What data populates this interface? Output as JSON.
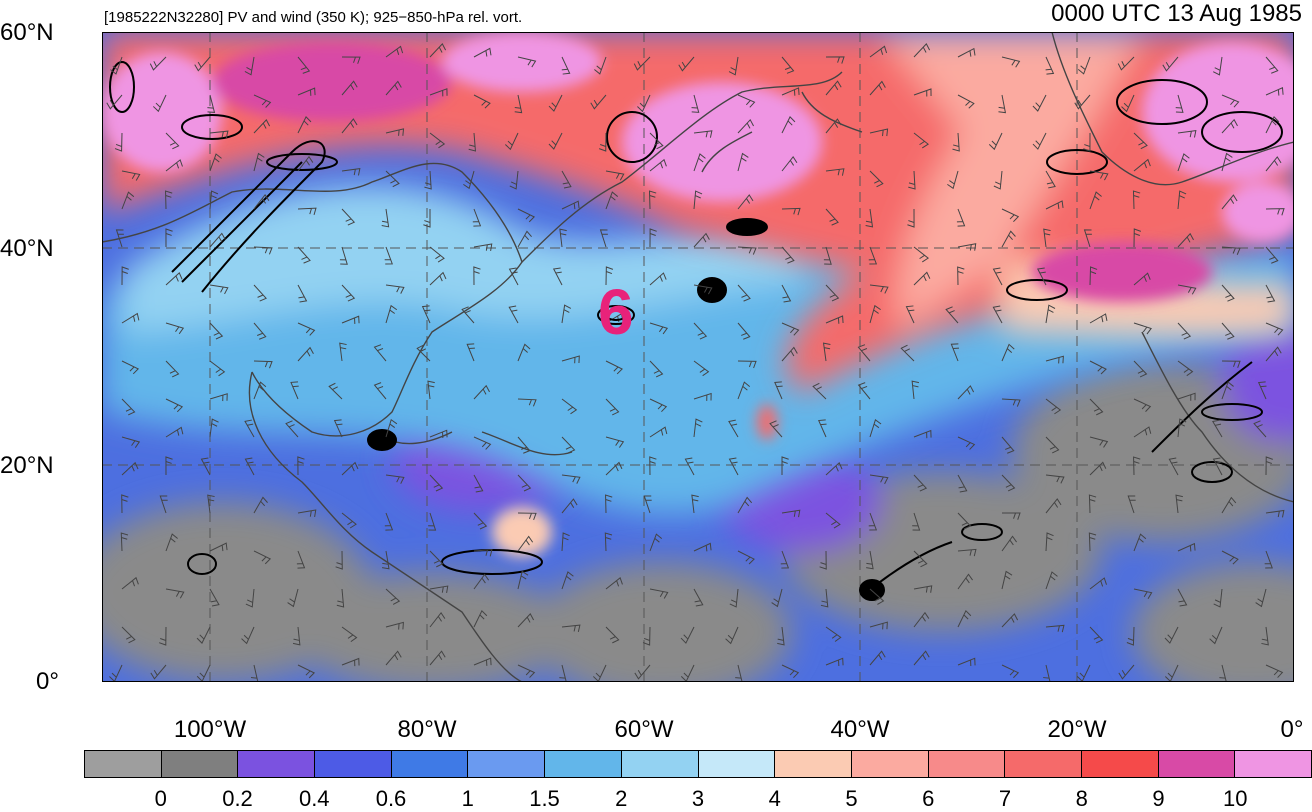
{
  "header": {
    "title": "[1985222N32280] PV and wind (350 K); 925−850-hPa rel. vort.",
    "time": "0000 UTC 13 Aug 1985"
  },
  "lat_labels": [
    "60°N",
    "40°N",
    "20°N",
    "0°"
  ],
  "lon_labels": [
    "100°W",
    "80°W",
    "60°W",
    "40°W",
    "20°W",
    "0°"
  ],
  "colorbar": {
    "colors": [
      "#9e9e9e",
      "#7f7f7f",
      "#7b52e0",
      "#4d5be6",
      "#3f7ae6",
      "#6a9af0",
      "#62b6ea",
      "#93d2f2",
      "#c5e8f9",
      "#fbcbb3",
      "#fbaaa0",
      "#f78a8a",
      "#f56a6a",
      "#f54a4a",
      "#d84aa6",
      "#ef95e3"
    ],
    "labels": [
      "0",
      "0.2",
      "0.4",
      "0.6",
      "1",
      "1.5",
      "2",
      "3",
      "4",
      "5",
      "6",
      "7",
      "8",
      "9",
      "10"
    ]
  },
  "storm_marker": {
    "symbol": "6",
    "color": "#e8227a"
  }
}
